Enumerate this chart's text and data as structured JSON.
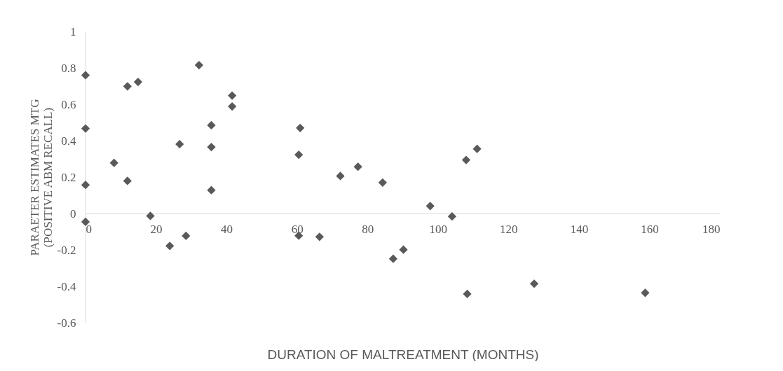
{
  "chart_data": {
    "type": "scatter",
    "xlabel": "DURATION OF MALTREATMENT (MONTHS)",
    "ylabel": "PARAETER ESTIMATES MTG\n(POSITIVE ABM RECALL)",
    "x": [
      0,
      0,
      0,
      0,
      8.1,
      11.9,
      11.9,
      14.9,
      18.4,
      23.9,
      26.7,
      28.5,
      32.2,
      35.7,
      35.7,
      35.7,
      41.6,
      41.6,
      60.9,
      60.5,
      60.5,
      66.4,
      72.3,
      77.3,
      84.3,
      87.3,
      90.2,
      97.8,
      104.0,
      108.0,
      111.1,
      108.3,
      127.3,
      158.8
    ],
    "series": [
      {
        "color": "#595959",
        "values": [
          0.76,
          0.467,
          0.157,
          -0.046,
          0.278,
          0.699,
          0.179,
          0.723,
          -0.013,
          -0.178,
          0.381,
          -0.123,
          0.815,
          0.485,
          0.365,
          0.128,
          0.648,
          0.588,
          0.47,
          0.323,
          -0.122,
          -0.128,
          0.206,
          0.257,
          0.17,
          -0.249,
          -0.199,
          0.041,
          -0.016,
          0.294,
          0.355,
          -0.442,
          -0.386,
          -0.436
        ]
      }
    ],
    "xlim": [
      0,
      180
    ],
    "xticks": [
      0,
      20,
      40,
      60,
      80,
      100,
      120,
      140,
      160,
      180
    ],
    "ylim": [
      -0.6,
      1
    ],
    "yticks": [
      -0.6,
      -0.4,
      -0.2,
      0,
      0.2,
      0.4,
      0.6,
      0.8,
      1
    ],
    "marker": "diamond",
    "grid": false,
    "legend": false
  }
}
